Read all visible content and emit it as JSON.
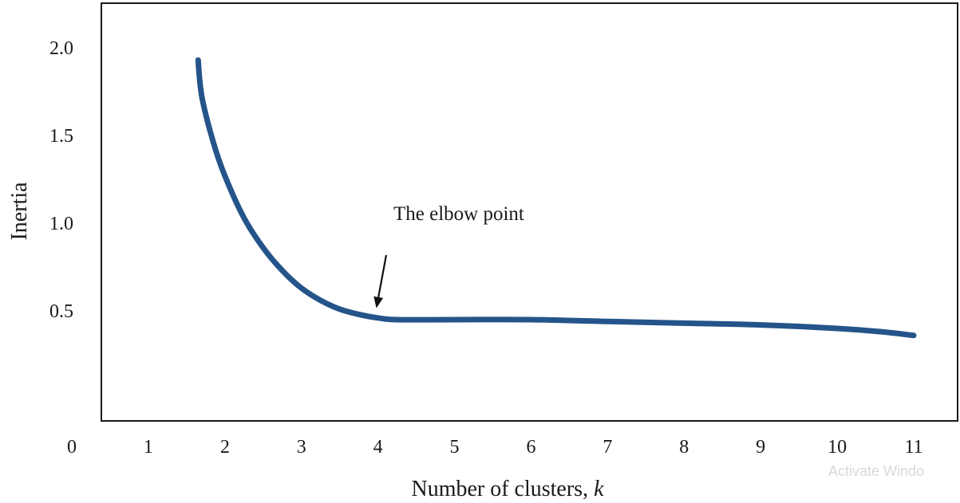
{
  "chart_data": {
    "type": "line",
    "title": "",
    "xlabel": "Number of clusters, ",
    "xlabel_var": "k",
    "ylabel": "Inertia",
    "x_ticks": [
      "0",
      "1",
      "2",
      "3",
      "4",
      "5",
      "6",
      "7",
      "8",
      "9",
      "10",
      "11"
    ],
    "y_ticks": [
      "0.5",
      "1.0",
      "1.5",
      "2.0"
    ],
    "xlim": [
      0,
      11.5
    ],
    "ylim": [
      -0.2,
      2.2
    ],
    "grid": false,
    "series_color": "#24548a",
    "x": [
      1.65,
      1.7,
      1.85,
      2.0,
      2.25,
      2.5,
      2.75,
      3.0,
      3.25,
      3.5,
      3.75,
      4.0,
      4.25,
      5.0,
      6.0,
      7.0,
      8.0,
      9.0,
      10.0,
      10.6,
      11.0
    ],
    "values": [
      1.93,
      1.72,
      1.46,
      1.27,
      1.03,
      0.86,
      0.73,
      0.63,
      0.56,
      0.51,
      0.48,
      0.46,
      0.45,
      0.45,
      0.45,
      0.44,
      0.43,
      0.42,
      0.4,
      0.38,
      0.36
    ],
    "annotation": {
      "text": "The elbow point",
      "target_x": 4.0,
      "target_y": 0.47
    }
  },
  "watermark": "Activate Windo"
}
